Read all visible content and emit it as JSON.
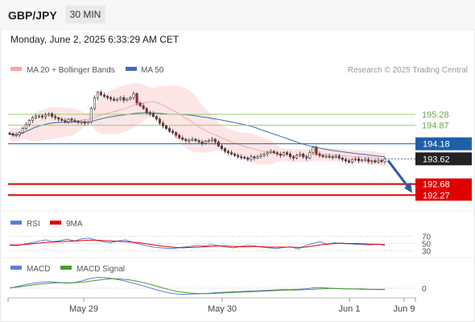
{
  "header": {
    "symbol": "GBP/JPY",
    "interval": "30 MIN",
    "datetime": "Monday, June 2, 2025 6:33:29 AM CET"
  },
  "legend": {
    "ma20_bb": "MA 20 + Bollinger Bands",
    "ma50": "MA 50",
    "credit": "Research © 2025 Trading Central",
    "rsi": "RSI",
    "rsi_ma": "9MA",
    "macd": "MACD",
    "macd_signal": "MACD Signal"
  },
  "colors": {
    "candle": "#b22222",
    "bollinger_fill": "#fde2e2",
    "ma20": "#f4a6a6",
    "ma50": "#3b6fb6",
    "resistance": "#9acd6a",
    "pivot": "#1f5fa8",
    "support": "#e00000",
    "rsi": "#5b7fd6",
    "rsi_ma": "#e00000",
    "macd": "#5b7fd6",
    "macd_signal": "#4a9a2a",
    "arrow": "#2a5ca8"
  },
  "chart_data": [
    {
      "type": "candlestick",
      "x_ticks": [
        "May 29",
        "May 30",
        "Jun 1",
        "Jun 9"
      ],
      "ylim": [
        191.8,
        196.6
      ],
      "levels": [
        {
          "value": 195.28,
          "label": "195.28",
          "kind": "resistance"
        },
        {
          "value": 194.87,
          "label": "194.87",
          "kind": "resistance"
        },
        {
          "value": 194.18,
          "label": "194.18",
          "kind": "pivot"
        },
        {
          "value": 193.62,
          "label": "193.62",
          "kind": "last"
        },
        {
          "value": 192.68,
          "label": "192.68",
          "kind": "support"
        },
        {
          "value": 192.27,
          "label": "192.27",
          "kind": "support"
        }
      ],
      "close": [
        194.55,
        194.5,
        194.52,
        194.6,
        194.75,
        194.9,
        195.05,
        195.15,
        195.2,
        195.22,
        195.18,
        195.25,
        195.3,
        195.2,
        195.15,
        195.1,
        195.05,
        195.0,
        195.1,
        195.05,
        195.02,
        194.98,
        195.0,
        194.95,
        195.0,
        195.5,
        195.9,
        196.1,
        196.0,
        195.95,
        195.9,
        195.85,
        195.8,
        195.85,
        195.9,
        195.8,
        195.85,
        195.9,
        196.05,
        195.7,
        195.6,
        195.5,
        195.35,
        195.3,
        195.2,
        195.1,
        194.95,
        194.85,
        194.75,
        194.65,
        194.6,
        194.5,
        194.4,
        194.35,
        194.3,
        194.32,
        194.35,
        194.3,
        194.25,
        194.2,
        194.28,
        194.3,
        194.35,
        194.25,
        194.1,
        194.0,
        193.9,
        193.85,
        193.8,
        193.75,
        193.7,
        193.68,
        193.65,
        193.6,
        193.7,
        193.65,
        193.7,
        193.75,
        193.8,
        193.85,
        193.9,
        193.85,
        193.8,
        193.75,
        193.85,
        193.8,
        193.7,
        193.65,
        193.75,
        193.8,
        193.7,
        193.65,
        193.85,
        194.05,
        193.8,
        193.75,
        193.7,
        193.72,
        193.7,
        193.68,
        193.72,
        193.65,
        193.6,
        193.55,
        193.5,
        193.6,
        193.62,
        193.55,
        193.58,
        193.6,
        193.52,
        193.55,
        193.5,
        193.56,
        193.52,
        193.62
      ]
    },
    {
      "type": "line",
      "title": "RSI",
      "y_ticks": [
        "70",
        "50",
        "30"
      ],
      "ylim": [
        20,
        80
      ],
      "series": [
        {
          "name": "RSI",
          "values": [
            45,
            44,
            48,
            52,
            56,
            60,
            55,
            58,
            62,
            57,
            63,
            65,
            59,
            55,
            52,
            57,
            60,
            54,
            48,
            44,
            40,
            38,
            36,
            37,
            40,
            42,
            45,
            43,
            47,
            44,
            40,
            38,
            42,
            45,
            43,
            40,
            38,
            36,
            39,
            41,
            35,
            44,
            50,
            55,
            48,
            52,
            50,
            49,
            48,
            47,
            46,
            48,
            45
          ]
        },
        {
          "name": "9MA",
          "values": [
            46,
            46,
            47,
            49,
            51,
            53,
            54,
            55,
            56,
            57,
            58,
            59,
            59,
            58,
            57,
            56,
            55,
            54,
            52,
            49,
            46,
            43,
            41,
            39,
            38,
            39,
            40,
            41,
            42,
            43,
            43,
            42,
            41,
            41,
            42,
            41,
            40,
            40,
            40,
            40,
            39,
            40,
            43,
            46,
            48,
            50,
            51,
            50,
            50,
            49,
            48,
            48,
            47
          ]
        }
      ]
    },
    {
      "type": "line",
      "title": "MACD",
      "y_ticks": [
        "0"
      ],
      "ylim": [
        -0.4,
        0.4
      ],
      "series": [
        {
          "name": "MACD",
          "values": [
            0.0,
            0.05,
            0.1,
            0.14,
            0.17,
            0.18,
            0.16,
            0.14,
            0.15,
            0.2,
            0.26,
            0.3,
            0.29,
            0.26,
            0.22,
            0.17,
            0.11,
            0.05,
            -0.02,
            -0.08,
            -0.13,
            -0.16,
            -0.17,
            -0.16,
            -0.15,
            -0.14,
            -0.12,
            -0.11,
            -0.1,
            -0.09,
            -0.08,
            -0.07,
            -0.06,
            -0.05,
            -0.04,
            -0.04,
            -0.03,
            -0.02,
            0.01,
            0.02,
            0.0,
            -0.01,
            -0.02,
            -0.02,
            -0.03,
            -0.03,
            -0.04,
            -0.04
          ]
        },
        {
          "name": "MACD Signal",
          "values": [
            0.01,
            0.03,
            0.06,
            0.09,
            0.12,
            0.14,
            0.15,
            0.15,
            0.15,
            0.16,
            0.19,
            0.22,
            0.25,
            0.26,
            0.25,
            0.23,
            0.19,
            0.14,
            0.08,
            0.02,
            -0.04,
            -0.09,
            -0.12,
            -0.14,
            -0.15,
            -0.15,
            -0.14,
            -0.13,
            -0.12,
            -0.11,
            -0.1,
            -0.09,
            -0.08,
            -0.07,
            -0.06,
            -0.05,
            -0.05,
            -0.04,
            -0.03,
            -0.02,
            -0.01,
            -0.01,
            -0.02,
            -0.02,
            -0.02,
            -0.03,
            -0.03,
            -0.03
          ]
        }
      ]
    }
  ]
}
